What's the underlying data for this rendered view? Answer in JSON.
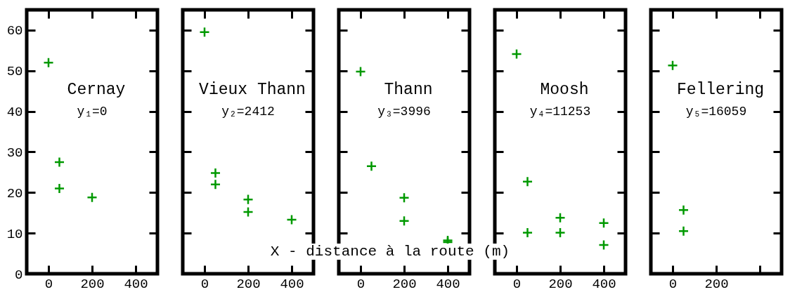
{
  "chart_data": [
    {
      "type": "scatter",
      "annotations": [
        "Cernay",
        "y₁=0"
      ],
      "x": [
        0,
        50,
        50,
        200
      ],
      "series": [
        {
          "color": "#009900",
          "values": [
            52,
            27.5,
            21,
            18.8
          ]
        }
      ],
      "xlim": [
        -100,
        500
      ],
      "ylim": [
        0,
        65
      ],
      "xticks": [
        0,
        200,
        400
      ],
      "yticks": [
        0,
        10,
        20,
        30,
        40,
        50,
        60
      ],
      "marker": "cross"
    },
    {
      "type": "scatter",
      "annotations": [
        "Vieux Thann",
        "y₂=2412"
      ],
      "x": [
        0,
        50,
        50,
        200,
        200,
        400
      ],
      "series": [
        {
          "color": "#009900",
          "values": [
            59.5,
            24.8,
            22,
            18.3,
            15.2,
            13.3
          ]
        }
      ],
      "xlim": [
        -100,
        500
      ],
      "ylim": [
        0,
        65
      ],
      "xticks": [
        0,
        200,
        400
      ],
      "yticks": [
        0,
        10,
        20,
        30,
        40,
        50,
        60
      ],
      "tick_labels": "x",
      "marker": "cross"
    },
    {
      "type": "scatter",
      "annotations": [
        "Thann",
        "y₃=3996"
      ],
      "xlabel": "X - distance à la route (m)",
      "x": [
        0,
        50,
        200,
        200,
        400,
        400
      ],
      "series": [
        {
          "color": "#009900",
          "values": [
            49.8,
            26.5,
            18.7,
            13,
            8.2,
            7.8
          ]
        }
      ],
      "xlim": [
        -100,
        500
      ],
      "ylim": [
        0,
        65
      ],
      "xticks": [
        0,
        200,
        400
      ],
      "yticks": [
        0,
        10,
        20,
        30,
        40,
        50,
        60
      ],
      "tick_labels": "x",
      "marker": "cross"
    },
    {
      "type": "scatter",
      "annotations": [
        "Moosh",
        "y₄=11253"
      ],
      "x": [
        0,
        50,
        50,
        200,
        200,
        400,
        400
      ],
      "series": [
        {
          "color": "#009900",
          "values": [
            54.1,
            22.7,
            10.1,
            13.8,
            10.1,
            12.5,
            7.1
          ]
        }
      ],
      "xlim": [
        -100,
        500
      ],
      "ylim": [
        0,
        65
      ],
      "xticks": [
        0,
        200,
        400
      ],
      "yticks": [
        0,
        10,
        20,
        30,
        40,
        50,
        60
      ],
      "tick_labels": "x",
      "marker": "cross"
    },
    {
      "type": "scatter",
      "annotations": [
        "Fellering",
        "y₅=16059"
      ],
      "x": [
        0,
        50,
        50
      ],
      "series": [
        {
          "color": "#009900",
          "values": [
            51.3,
            15.7,
            10.5
          ]
        }
      ],
      "xlim": [
        -100,
        500
      ],
      "ylim": [
        0,
        65
      ],
      "xticks": [
        0,
        200,
        {
          "value": 400,
          "label": null
        }
      ],
      "yticks": [
        0,
        10,
        20,
        30,
        40,
        50,
        60
      ],
      "tick_labels": "x",
      "marker": "cross"
    }
  ]
}
